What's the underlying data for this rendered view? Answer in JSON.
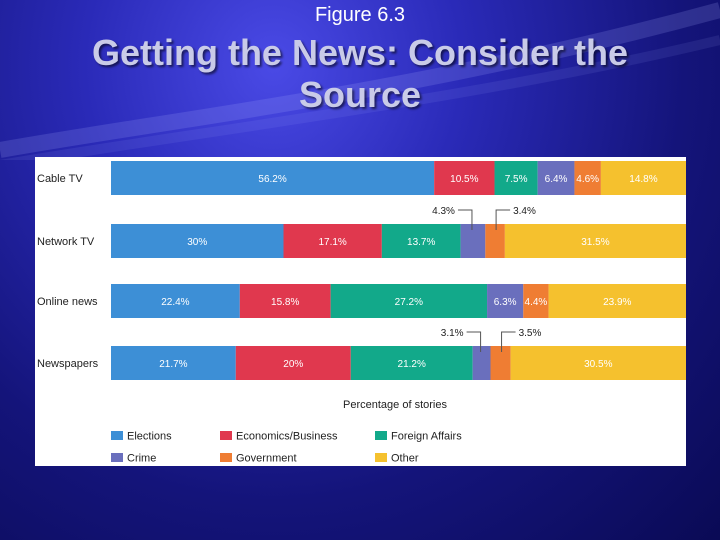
{
  "figure_label": "Figure 6.3",
  "slide_title": "Getting the News:  Consider the Source",
  "colors": {
    "Elections": "#3d8fd6",
    "Economics/Business": "#e0384e",
    "Foreign Affairs": "#12a98a",
    "Crime": "#6a6fbd",
    "Government": "#ef7d33",
    "Other": "#f5c12e"
  },
  "chart_data": {
    "type": "bar",
    "orientation": "horizontal",
    "stacked": true,
    "title": "",
    "xlabel": "Percentage of stories",
    "ylabel": "",
    "xlim": [
      0,
      100
    ],
    "grid": false,
    "legend_placement": "bottom",
    "categories": [
      "Cable TV",
      "Network TV",
      "Online news",
      "Newspapers"
    ],
    "series": [
      {
        "name": "Elections",
        "values": [
          56.2,
          30,
          22.4,
          21.7
        ],
        "labels": [
          "56.2%",
          "30%",
          "22.4%",
          "21.7%"
        ]
      },
      {
        "name": "Economics/Business",
        "values": [
          10.5,
          17.1,
          15.8,
          20
        ],
        "labels": [
          "10.5%",
          "17.1%",
          "15.8%",
          "20%"
        ]
      },
      {
        "name": "Foreign Affairs",
        "values": [
          7.5,
          13.7,
          27.2,
          21.2
        ],
        "labels": [
          "7.5%",
          "13.7%",
          "27.2%",
          "21.2%"
        ]
      },
      {
        "name": "Crime",
        "values": [
          6.4,
          4.3,
          6.3,
          3.1
        ],
        "labels": [
          "6.4%",
          "4.3%",
          "6.3%",
          "3.1%"
        ]
      },
      {
        "name": "Government",
        "values": [
          4.6,
          3.4,
          4.4,
          3.5
        ],
        "labels": [
          "4.6%",
          "3.4%",
          "4.4%",
          "3.5%"
        ]
      },
      {
        "name": "Other",
        "values": [
          14.8,
          31.5,
          23.9,
          30.5
        ],
        "labels": [
          "14.8%",
          "31.5%",
          "23.9%",
          "30.5%"
        ]
      }
    ],
    "callouts": [
      {
        "category": "Network TV",
        "series": "Crime",
        "label": "4.3%"
      },
      {
        "category": "Network TV",
        "series": "Government",
        "label": "3.4%"
      },
      {
        "category": "Newspapers",
        "series": "Crime",
        "label": "3.1%"
      },
      {
        "category": "Newspapers",
        "series": "Government",
        "label": "3.5%"
      }
    ],
    "legend": [
      [
        "Elections",
        "Economics/Business",
        "Foreign Affairs"
      ],
      [
        "Crime",
        "Government",
        "Other"
      ]
    ]
  }
}
